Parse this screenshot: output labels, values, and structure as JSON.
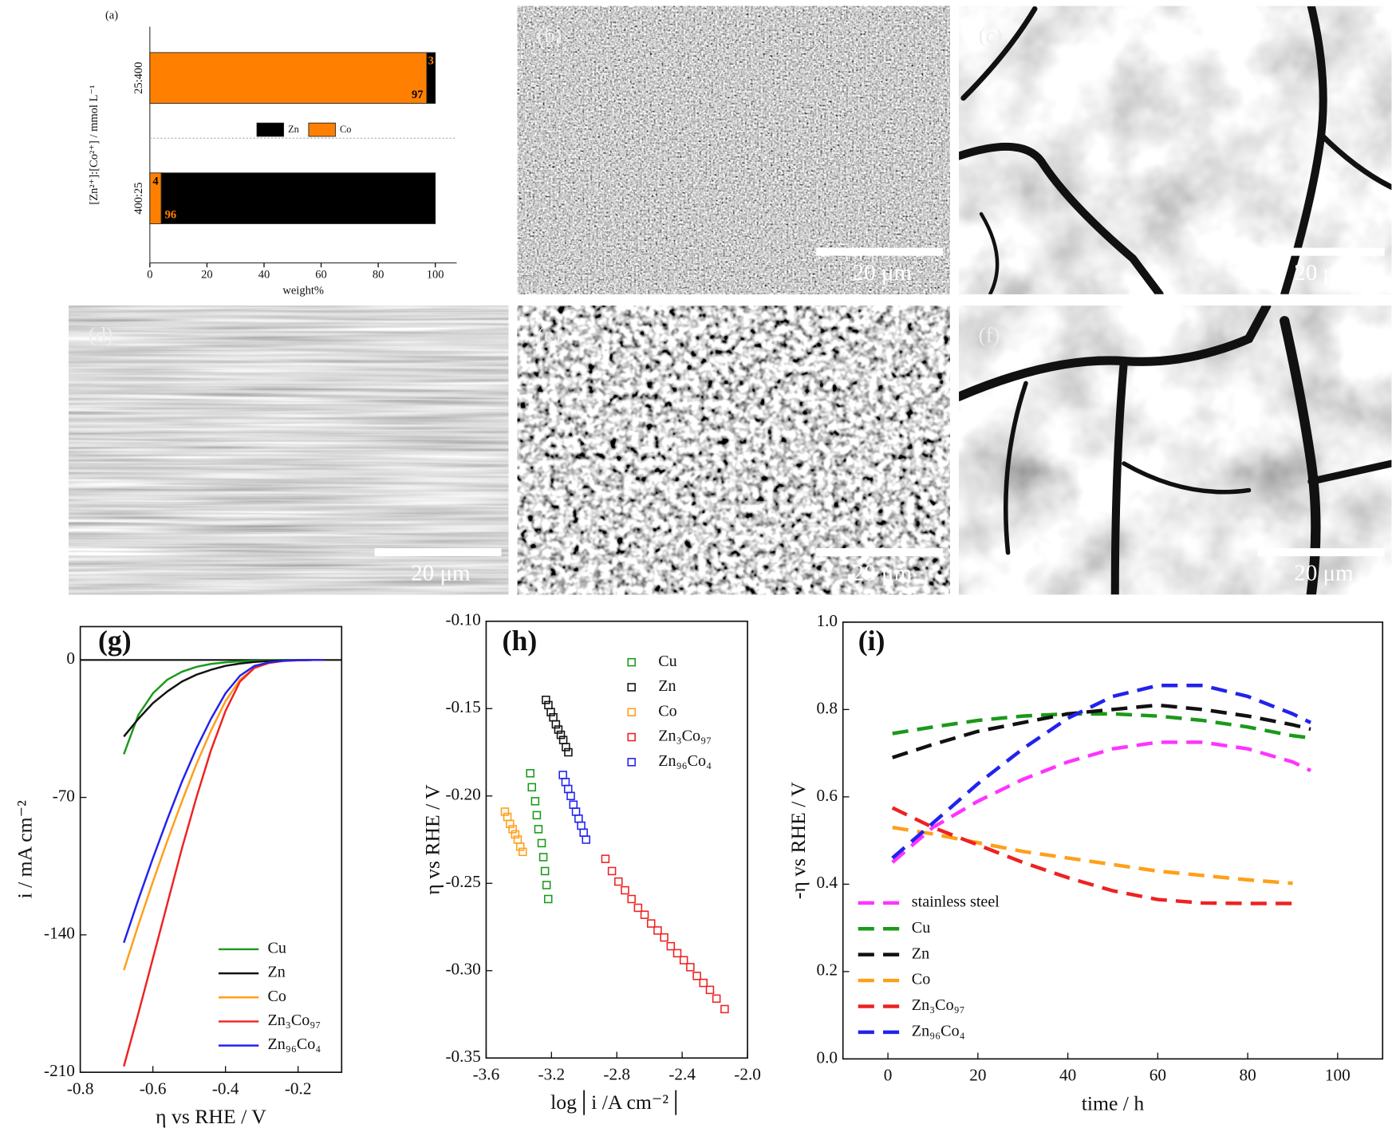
{
  "images": [
    {
      "label": "(b)",
      "scale_bar": "20 μm"
    },
    {
      "label": "(c)",
      "scale_bar": "20 μm"
    },
    {
      "label": "(d)",
      "scale_bar": "20 μm"
    },
    {
      "label": "(e)",
      "scale_bar": "20 μm"
    },
    {
      "label": "(f)",
      "scale_bar": "20 μm"
    }
  ],
  "chart_data": [
    {
      "type": "bar",
      "orientation": "horizontal",
      "stacked": true,
      "label": "(a)",
      "x_label": "weight%",
      "y_label": "[Zn²⁺]:[Co²⁺] / mmol L⁻¹",
      "categories": [
        "25:400",
        "400:25"
      ],
      "series": [
        {
          "name": "Zn",
          "color": "#000000",
          "values": [
            3,
            96
          ]
        },
        {
          "name": "Co",
          "color": "#ff8000",
          "values": [
            97,
            4
          ]
        }
      ],
      "xlim": [
        0,
        107.5
      ],
      "xticks": [
        0,
        20,
        40,
        60,
        80,
        100
      ]
    },
    {
      "type": "line",
      "label": "(g)",
      "x_label": "η vs RHE / V",
      "y_label": "i / mA cm⁻²",
      "zero_line": true,
      "x": [
        -0.68,
        -0.64,
        -0.6,
        -0.56,
        -0.52,
        -0.48,
        -0.44,
        -0.4,
        -0.36,
        -0.32,
        -0.28,
        -0.24,
        -0.2,
        -0.16,
        -0.13
      ],
      "series": [
        {
          "name": "Cu",
          "color": "#1a9a1a",
          "values": [
            -48,
            -28,
            -17,
            -10,
            -6,
            -3.5,
            -2,
            -1.2,
            -0.7,
            -0.4,
            -0.2,
            -0.1,
            0,
            0,
            0
          ]
        },
        {
          "name": "Zn",
          "color": "#111111",
          "values": [
            -39,
            -30,
            -22,
            -16,
            -11,
            -7.5,
            -5,
            -3,
            -1.8,
            -1,
            -0.5,
            -0.2,
            -0.1,
            0,
            0
          ]
        },
        {
          "name": "Co",
          "color": "#ff9f1a",
          "values": [
            -158,
            -135,
            -113,
            -92,
            -72,
            -53,
            -36,
            -21,
            -10,
            -4,
            -1.5,
            -0.5,
            -0.2,
            0,
            0
          ]
        },
        {
          "name": "Zn₃Co₉₇",
          "color": "#ee2222",
          "values": [
            -207,
            -180,
            -152,
            -124,
            -96,
            -70,
            -46,
            -26,
            -11,
            -4,
            -1.5,
            -0.5,
            -0.2,
            0,
            0
          ]
        },
        {
          "name": "Zn₉₆Co₄",
          "color": "#2222ee",
          "values": [
            -144,
            -122,
            -101,
            -81,
            -62,
            -45,
            -30,
            -17,
            -8,
            -3,
            -1.2,
            -0.4,
            -0.1,
            0,
            0
          ]
        }
      ],
      "xlim": [
        -0.8,
        -0.08
      ],
      "ylim": [
        -210,
        17
      ],
      "xticks": [
        -0.8,
        -0.6,
        -0.4,
        -0.2
      ],
      "yticks": [
        0,
        -70,
        -140,
        -210
      ]
    },
    {
      "type": "scatter",
      "label": "(h)",
      "x_label": "log│i /A cm⁻²│",
      "y_label": "η vs RHE / V",
      "series": [
        {
          "name": "Cu",
          "color": "#1a9a1a",
          "x": [
            -3.33,
            -3.32,
            -3.3,
            -3.29,
            -3.28,
            -3.26,
            -3.25,
            -3.24,
            -3.23,
            -3.22
          ],
          "values": [
            -0.187,
            -0.195,
            -0.203,
            -0.211,
            -0.219,
            -0.227,
            -0.235,
            -0.243,
            -0.251,
            -0.259
          ]
        },
        {
          "name": "Zn",
          "color": "#111111",
          "x": [
            -3.234,
            -3.219,
            -3.204,
            -3.189,
            -3.173,
            -3.158,
            -3.143,
            -3.128,
            -3.112,
            -3.097
          ],
          "values": [
            -0.145,
            -0.148,
            -0.152,
            -0.155,
            -0.159,
            -0.162,
            -0.165,
            -0.168,
            -0.172,
            -0.175
          ]
        },
        {
          "name": "Co",
          "color": "#ff9f1a",
          "x": [
            -3.485,
            -3.47,
            -3.454,
            -3.438,
            -3.422,
            -3.407,
            -3.391,
            -3.376
          ],
          "values": [
            -0.209,
            -0.212,
            -0.216,
            -0.219,
            -0.222,
            -0.225,
            -0.229,
            -0.232
          ]
        },
        {
          "name": "Zn₃Co₉₇",
          "color": "#ee2222",
          "x": [
            -2.87,
            -2.83,
            -2.79,
            -2.75,
            -2.71,
            -2.67,
            -2.63,
            -2.59,
            -2.55,
            -2.51,
            -2.47,
            -2.43,
            -2.39,
            -2.35,
            -2.31,
            -2.27,
            -2.23,
            -2.19,
            -2.14
          ],
          "values": [
            -0.236,
            -0.243,
            -0.249,
            -0.254,
            -0.259,
            -0.264,
            -0.268,
            -0.273,
            -0.277,
            -0.281,
            -0.286,
            -0.29,
            -0.294,
            -0.298,
            -0.303,
            -0.307,
            -0.311,
            -0.316,
            -0.322
          ]
        },
        {
          "name": "Zn₉₆Co₄",
          "color": "#2222ee",
          "x": [
            -3.13,
            -3.114,
            -3.098,
            -3.082,
            -3.066,
            -3.05,
            -3.034,
            -3.018,
            -3.003,
            -2.988
          ],
          "values": [
            -0.188,
            -0.192,
            -0.196,
            -0.2,
            -0.205,
            -0.209,
            -0.213,
            -0.217,
            -0.221,
            -0.225
          ]
        }
      ],
      "xlim": [
        -3.6,
        -2.0
      ],
      "ylim": [
        -0.35,
        -0.1
      ],
      "xticks": [
        -3.6,
        -3.2,
        -2.8,
        -2.4,
        {
          "value": -2,
          "label": "-2.0"
        }
      ],
      "yticks": [
        {
          "value": -0.1,
          "label": "-0.10"
        },
        -0.15,
        {
          "value": -0.2,
          "label": "-0.20"
        },
        -0.25,
        {
          "value": -0.3,
          "label": "-0.30"
        },
        -0.35
      ]
    },
    {
      "type": "line",
      "line_style": "dashed",
      "label": "(i)",
      "x_label": "time / h",
      "y_label": "-η vs RHE / V",
      "x": [
        1,
        10,
        20,
        30,
        40,
        50,
        60,
        70,
        80,
        90,
        94
      ],
      "series": [
        {
          "name": "stainless steel",
          "color": "#ff33ff",
          "values": [
            0.45,
            0.53,
            0.59,
            0.64,
            0.68,
            0.71,
            0.725,
            0.725,
            0.71,
            0.68,
            0.66
          ]
        },
        {
          "name": "Cu",
          "color": "#1a9a1a",
          "values": [
            0.745,
            0.76,
            0.775,
            0.785,
            0.79,
            0.79,
            0.785,
            0.775,
            0.76,
            0.74,
            0.735
          ]
        },
        {
          "name": "Zn",
          "color": "#111111",
          "values": [
            0.69,
            0.72,
            0.75,
            0.77,
            0.79,
            0.8,
            0.81,
            0.8,
            0.785,
            0.765,
            0.755
          ]
        },
        {
          "name": "Co",
          "color": "#ff9f1a",
          "values": [
            0.53,
            0.515,
            0.495,
            0.475,
            0.46,
            0.445,
            0.43,
            0.42,
            0.41,
            0.402,
            null
          ]
        },
        {
          "name": "Zn₃Co₉₇",
          "color": "#ee2222",
          "values": [
            0.575,
            0.53,
            0.49,
            0.45,
            0.415,
            0.385,
            0.365,
            0.357,
            0.356,
            0.356,
            null
          ]
        },
        {
          "name": "Zn₉₆Co₄",
          "color": "#2222ee",
          "values": [
            0.46,
            0.54,
            0.63,
            0.71,
            0.78,
            0.83,
            0.855,
            0.855,
            0.83,
            0.79,
            0.77
          ]
        }
      ],
      "xlim": [
        -10,
        110
      ],
      "ylim": [
        0,
        1
      ],
      "xticks": [
        0,
        20,
        40,
        60,
        80,
        100
      ],
      "yticks": [
        {
          "value": 0,
          "label": "0.0"
        },
        0.2,
        0.4,
        0.6,
        0.8,
        {
          "value": 1,
          "label": "1.0"
        }
      ]
    }
  ]
}
